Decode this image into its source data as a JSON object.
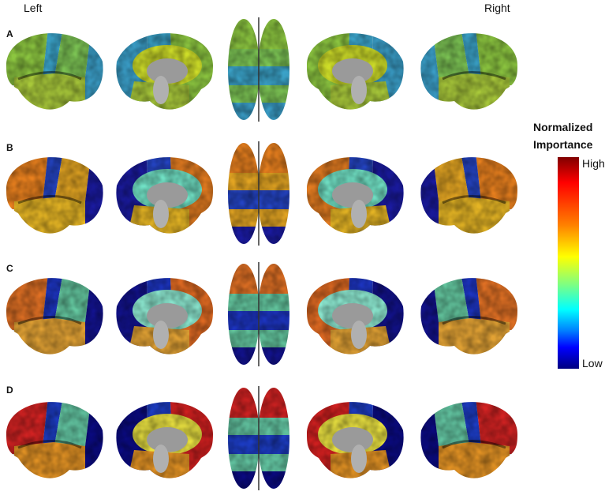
{
  "figure": {
    "left_label": "Left",
    "right_label": "Right",
    "panels": [
      {
        "letter": "A",
        "colors": {
          "frontal": "#8cc640",
          "central": "#3aa2c8",
          "parietal": "#7cc454",
          "temporal": "#a8c83a",
          "occipital": "#3a9ec8",
          "cingulate": "#cddc28",
          "medfront": "#8cc640"
        }
      },
      {
        "letter": "B",
        "colors": {
          "frontal": "#e8801e",
          "central": "#2444c4",
          "parietal": "#e2a422",
          "temporal": "#e4b424",
          "occipital": "#1a1aa0",
          "cingulate": "#70e0c4",
          "medfront": "#e07a20"
        }
      },
      {
        "letter": "C",
        "colors": {
          "frontal": "#e07024",
          "central": "#1c34c0",
          "parietal": "#64c8a0",
          "temporal": "#e2a234",
          "occipital": "#12128e",
          "cingulate": "#8ce8d0",
          "medfront": "#e06a22"
        }
      },
      {
        "letter": "D",
        "colors": {
          "frontal": "#d22222",
          "central": "#1c3cc4",
          "parietal": "#64c8a4",
          "temporal": "#e29224",
          "occipital": "#0a0a82",
          "cingulate": "#e8e040",
          "medfront": "#d42020"
        }
      }
    ],
    "views": [
      "lateral-left",
      "medial-left",
      "dorsal",
      "medial-right",
      "lateral-right"
    ]
  },
  "colorbar": {
    "title_line1": "Normalized",
    "title_line2": "Importance",
    "high_label": "High",
    "low_label": "Low",
    "colormap": "jet"
  }
}
